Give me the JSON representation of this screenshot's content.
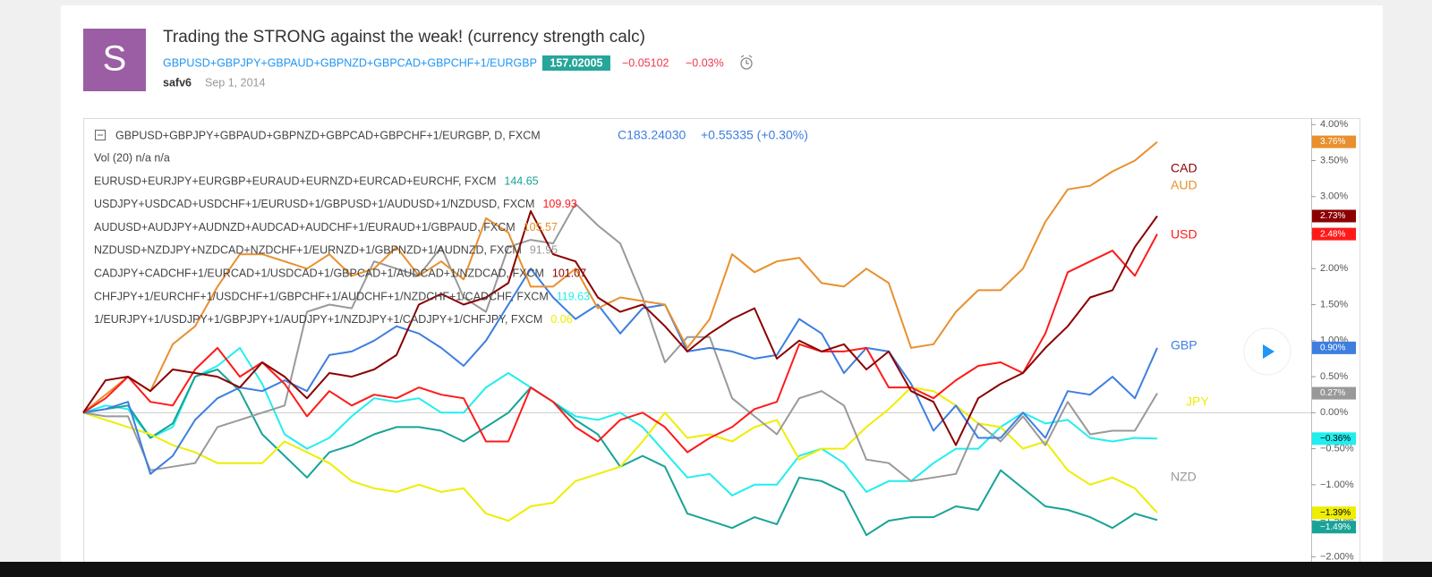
{
  "header": {
    "avatar": "S",
    "title": "Trading the STRONG against the weak! (currency strength calc)",
    "symbol": "GBPUSD+GBPJPY+GBPAUD+GBPNZD+GBPCAD+GBPCHF+1/EURGBP",
    "price": 157.02005,
    "change": "−0.05102",
    "change_pct": "−0.03%",
    "author": "safv6",
    "date": "Sep 1, 2014"
  },
  "legend": {
    "main": "GBPUSD+GBPJPY+GBPAUD+GBPNZD+GBPCAD+GBPCHF+1/EURGBP, D, FXCM",
    "close": "C183.24030",
    "close_change": "+0.55335 (+0.30%)",
    "vol": "Vol (20)  n/a  n/a",
    "studies": [
      {
        "text": "EURUSD+EURJPY+EURGBP+EURAUD+EURNZD+EURCAD+EURCHF, FXCM",
        "value": 144.65,
        "color": "#17a397"
      },
      {
        "text": "USDJPY+USDCAD+USDCHF+1/EURUSD+1/GBPUSD+1/AUDUSD+1/NZDUSD, FXCM",
        "value": 109.93,
        "color": "#ff1a1a"
      },
      {
        "text": "AUDUSD+AUDJPY+AUDNZD+AUDCAD+AUDCHF+1/EURAUD+1/GBPAUD, FXCM",
        "value": 105.57,
        "color": "#e8902e"
      },
      {
        "text": "NZDUSD+NZDJPY+NZDCAD+NZDCHF+1/EURNZD+1/GBPNZD+1/AUDNZD, FXCM",
        "value": 91.95,
        "color": "#999999"
      },
      {
        "text": "CADJPY+CADCHF+1/EURCAD+1/USDCAD+1/GBPCAD+1/AUDCAD+1/NZDCAD, FXCM",
        "value": 101.07,
        "color": "#8b0000"
      },
      {
        "text": "CHFJPY+1/EURCHF+1/USDCHF+1/GBPCHF+1/AUDCHF+1/NZDCHF+1/CADCHF, FXCM",
        "value": 119.63,
        "color": "#22eeee"
      },
      {
        "text": "1/EURJPY+1/USDJPY+1/GBPJPY+1/AUDJPY+1/NZDJPY+1/CADJPY+1/CHFJPY, FXCM",
        "value": 0.06,
        "color": "#eeee00"
      }
    ]
  },
  "chart_data": {
    "type": "line",
    "ylim": [
      -2.07,
      4.09
    ],
    "zero_line": true,
    "yticks": [
      {
        "value": 4,
        "label": "4.00%"
      },
      {
        "value": 3.5,
        "label": "3.50%"
      },
      {
        "value": 3,
        "label": "3.00%"
      },
      {
        "value": 2.5,
        "label": "2.50%"
      },
      {
        "value": 2,
        "label": "2.00%"
      },
      {
        "value": 1.5,
        "label": "1.50%"
      },
      {
        "value": 1,
        "label": "1.00%"
      },
      {
        "value": 0.5,
        "label": "0.50%"
      },
      {
        "value": 0,
        "label": "0.00%"
      },
      {
        "value": -0.5,
        "label": "−0.50%"
      },
      {
        "value": -1,
        "label": "−1.00%"
      },
      {
        "value": -1.5,
        "label": "−1.50%"
      },
      {
        "value": -2,
        "label": "−2.00%"
      }
    ],
    "series": [
      {
        "name": "AUD",
        "color": "#e8902e",
        "last_label": "3.76%",
        "values": [
          0,
          0.25,
          0.5,
          0.3,
          0.95,
          1.2,
          1.75,
          2.2,
          2.2,
          2.1,
          2.0,
          2.2,
          1.9,
          2.0,
          2.3,
          1.9,
          2.1,
          1.85,
          2.7,
          2.5,
          1.75,
          1.75,
          2.0,
          1.45,
          1.6,
          1.55,
          1.5,
          0.9,
          1.3,
          2.2,
          1.95,
          2.1,
          2.15,
          1.8,
          1.75,
          2.0,
          1.8,
          0.9,
          0.95,
          1.4,
          1.7,
          1.7,
          2.0,
          2.65,
          3.1,
          3.15,
          3.35,
          3.5,
          3.76
        ]
      },
      {
        "name": "CAD",
        "color": "#8b0000",
        "last_label": "2.73%",
        "values": [
          0,
          0.45,
          0.5,
          0.3,
          0.6,
          0.55,
          0.5,
          0.35,
          0.7,
          0.5,
          0.2,
          0.55,
          0.5,
          0.6,
          0.8,
          1.5,
          1.65,
          1.5,
          1.6,
          1.8,
          2.8,
          2.2,
          2.1,
          1.6,
          1.4,
          1.5,
          1.2,
          0.85,
          1.1,
          1.3,
          1.45,
          0.75,
          1.0,
          0.85,
          0.95,
          0.6,
          0.85,
          0.3,
          0.15,
          -0.45,
          0.2,
          0.4,
          0.55,
          0.9,
          1.2,
          1.6,
          1.7,
          2.3,
          2.73
        ]
      },
      {
        "name": "USD",
        "color": "#ff1a1a",
        "last_label": "2.48%",
        "values": [
          0,
          0.2,
          0.5,
          0.15,
          0.1,
          0.6,
          0.9,
          0.5,
          0.7,
          0.4,
          -0.05,
          0.3,
          0.1,
          0.25,
          0.2,
          0.35,
          0.25,
          0.2,
          -0.4,
          -0.4,
          0.35,
          0.15,
          -0.2,
          -0.4,
          -0.1,
          0.0,
          -0.2,
          -0.55,
          -0.35,
          -0.2,
          0.05,
          0.15,
          0.95,
          0.85,
          0.85,
          0.9,
          0.35,
          0.35,
          0.2,
          0.45,
          0.65,
          0.7,
          0.55,
          1.1,
          1.95,
          2.1,
          2.25,
          1.9,
          2.48
        ]
      },
      {
        "name": "GBP",
        "color": "#3d7ee0",
        "last_label": "0.90%",
        "values": [
          0,
          0.05,
          0.15,
          -0.85,
          -0.6,
          -0.1,
          0.2,
          0.35,
          0.3,
          0.45,
          0.3,
          0.8,
          0.85,
          1.0,
          1.2,
          1.1,
          0.9,
          0.65,
          1.0,
          1.5,
          2.0,
          1.6,
          1.3,
          1.5,
          1.1,
          1.45,
          1.5,
          0.85,
          0.9,
          0.85,
          0.75,
          0.8,
          1.3,
          1.1,
          0.55,
          0.9,
          0.85,
          0.4,
          -0.25,
          0.1,
          -0.35,
          -0.35,
          0.0,
          -0.35,
          0.3,
          0.25,
          0.5,
          0.2,
          0.9
        ]
      },
      {
        "name": "JPY",
        "color": "#eeee00",
        "last_label": "−1.39%",
        "values": [
          0,
          -0.1,
          -0.2,
          -0.3,
          -0.45,
          -0.55,
          -0.7,
          -0.7,
          -0.7,
          -0.4,
          -0.55,
          -0.7,
          -0.95,
          -1.05,
          -1.1,
          -1.0,
          -1.1,
          -1.05,
          -1.4,
          -1.5,
          -1.3,
          -1.25,
          -0.95,
          -0.85,
          -0.75,
          -0.4,
          0.0,
          -0.35,
          -0.3,
          -0.4,
          -0.2,
          -0.1,
          -0.65,
          -0.5,
          -0.5,
          -0.2,
          0.05,
          0.35,
          0.3,
          0.1,
          -0.15,
          -0.2,
          -0.5,
          -0.4,
          -0.8,
          -1.0,
          -0.9,
          -1.05,
          -1.39
        ]
      },
      {
        "name": "NZD",
        "color": "#999999",
        "last_label": "0.27%",
        "values": [
          0,
          -0.05,
          -0.05,
          -0.8,
          -0.75,
          -0.7,
          -0.2,
          -0.1,
          0.0,
          0.1,
          1.4,
          1.5,
          1.45,
          2.1,
          2.0,
          1.9,
          2.3,
          1.6,
          1.4,
          2.3,
          2.4,
          2.35,
          2.9,
          2.6,
          2.35,
          1.6,
          0.7,
          1.05,
          1.05,
          0.2,
          -0.05,
          -0.3,
          0.2,
          0.3,
          0.1,
          -0.65,
          -0.7,
          -0.95,
          -0.9,
          -0.85,
          -0.15,
          -0.4,
          -0.05,
          -0.45,
          0.15,
          -0.3,
          -0.25,
          -0.25,
          0.27
        ]
      },
      {
        "color": "#22eeee",
        "last_label": "−0.36%",
        "values": [
          0,
          0.1,
          0.05,
          -0.35,
          -0.2,
          0.5,
          0.65,
          0.9,
          0.4,
          -0.3,
          -0.5,
          -0.35,
          -0.05,
          0.2,
          0.15,
          0.2,
          0.0,
          0.0,
          0.35,
          0.55,
          0.35,
          0.15,
          -0.05,
          -0.1,
          0.0,
          -0.2,
          -0.55,
          -0.9,
          -0.85,
          -1.15,
          -1.0,
          -1.0,
          -0.6,
          -0.5,
          -0.7,
          -1.1,
          -0.95,
          -0.95,
          -0.7,
          -0.5,
          -0.5,
          -0.2,
          0.0,
          -0.15,
          -0.1,
          -0.35,
          -0.4,
          -0.35,
          -0.36
        ]
      },
      {
        "color": "#17a397",
        "last_label": "−1.49%",
        "values": [
          0,
          0.05,
          0.1,
          -0.35,
          -0.15,
          0.5,
          0.6,
          0.3,
          -0.3,
          -0.6,
          -0.9,
          -0.55,
          -0.45,
          -0.3,
          -0.2,
          -0.2,
          -0.25,
          -0.4,
          -0.2,
          0.0,
          0.35,
          0.15,
          -0.1,
          -0.3,
          -0.75,
          -0.6,
          -0.75,
          -1.4,
          -1.5,
          -1.6,
          -1.45,
          -1.55,
          -0.9,
          -0.95,
          -1.1,
          -1.7,
          -1.5,
          -1.45,
          -1.45,
          -1.3,
          -1.35,
          -0.8,
          -1.05,
          -1.3,
          -1.35,
          -1.45,
          -1.6,
          -1.4,
          -1.49
        ]
      }
    ]
  }
}
